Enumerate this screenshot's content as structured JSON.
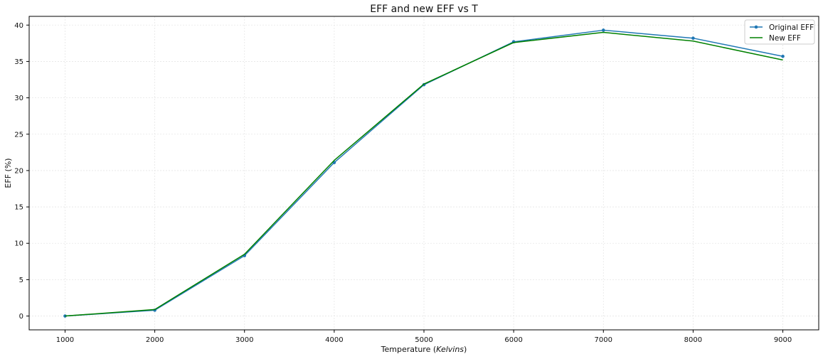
{
  "chart_data": {
    "type": "line",
    "title": "EFF and new EFF vs T",
    "xlabel_prefix": "Temperature (",
    "xlabel_italic": "Kelvins",
    "xlabel_suffix": ")",
    "ylabel": "EFF (%)",
    "x": [
      1000,
      2000,
      3000,
      4000,
      5000,
      6000,
      7000,
      8000,
      9000
    ],
    "xlim": [
      600,
      9400
    ],
    "ylim": [
      -1.9,
      41.2
    ],
    "xticks": [
      1000,
      2000,
      3000,
      4000,
      5000,
      6000,
      7000,
      8000,
      9000
    ],
    "yticks": [
      0,
      5,
      10,
      15,
      20,
      25,
      30,
      35,
      40
    ],
    "grid": true,
    "legend_position": "top-right",
    "series": [
      {
        "name": "Original EFF",
        "color": "#1f77b4",
        "marker": "circle",
        "values": [
          0.0,
          0.8,
          8.3,
          21.1,
          31.8,
          37.7,
          39.3,
          38.2,
          35.7
        ]
      },
      {
        "name": "New EFF",
        "color": "#008000",
        "marker": "none",
        "values": [
          0.0,
          0.9,
          8.5,
          21.4,
          31.9,
          37.6,
          39.0,
          37.8,
          35.2
        ]
      }
    ]
  }
}
